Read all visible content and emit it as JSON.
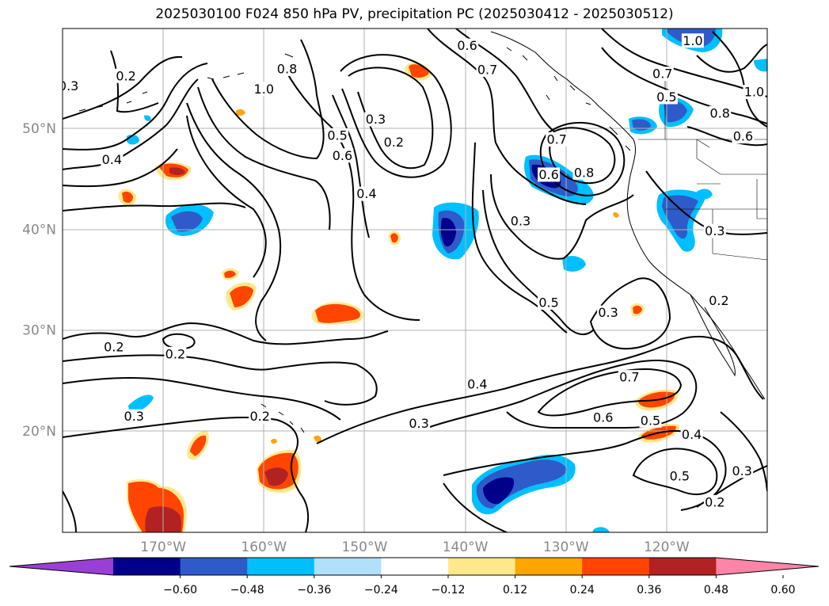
{
  "title": "2025030100 F024 850 hPa PV, precipitation PC (2025030412 - 2025030512)",
  "map": {
    "lon_range": [
      -180,
      -110
    ],
    "lat_range": [
      10,
      60
    ],
    "lat_ticks": [
      {
        "value": 20,
        "label": "20°N"
      },
      {
        "value": 30,
        "label": "30°N"
      },
      {
        "value": 40,
        "label": "40°N"
      },
      {
        "value": 50,
        "label": "50°N"
      }
    ],
    "lon_ticks": [
      {
        "value": -170,
        "label": "170°W"
      },
      {
        "value": -160,
        "label": "160°W"
      },
      {
        "value": -150,
        "label": "150°W"
      },
      {
        "value": -140,
        "label": "140°W"
      },
      {
        "value": -130,
        "label": "130°W"
      },
      {
        "value": -120,
        "label": "120°W"
      }
    ],
    "gridlines": true,
    "contour_labels": [
      {
        "text": "0.3",
        "lon": -179.4,
        "lat": 54.3
      },
      {
        "text": "0.2",
        "lon": -173.7,
        "lat": 55.3
      },
      {
        "text": "0.4",
        "lon": -175.1,
        "lat": 47.0
      },
      {
        "text": "1.0",
        "lon": -160.0,
        "lat": 54.0
      },
      {
        "text": "0.8",
        "lon": -157.7,
        "lat": 56.0
      },
      {
        "text": "0.5",
        "lon": -152.7,
        "lat": 49.4
      },
      {
        "text": "0.6",
        "lon": -152.2,
        "lat": 47.4
      },
      {
        "text": "0.3",
        "lon": -148.9,
        "lat": 51.0
      },
      {
        "text": "0.2",
        "lon": -147.1,
        "lat": 48.7
      },
      {
        "text": "0.4",
        "lon": -149.8,
        "lat": 43.6
      },
      {
        "text": "0.6",
        "lon": -139.8,
        "lat": 58.3
      },
      {
        "text": "0.7",
        "lon": -137.8,
        "lat": 55.9
      },
      {
        "text": "0.7",
        "lon": -130.9,
        "lat": 49.0
      },
      {
        "text": "0.6",
        "lon": -131.7,
        "lat": 45.5
      },
      {
        "text": "0.8",
        "lon": -128.2,
        "lat": 45.7
      },
      {
        "text": "0.3",
        "lon": -134.5,
        "lat": 40.9
      },
      {
        "text": "0.5",
        "lon": -131.7,
        "lat": 32.8
      },
      {
        "text": "0.3",
        "lon": -125.8,
        "lat": 31.8
      },
      {
        "text": "0.7",
        "lon": -120.4,
        "lat": 55.5
      },
      {
        "text": "0.5",
        "lon": -120.0,
        "lat": 53.2
      },
      {
        "text": "1.0",
        "lon": -117.4,
        "lat": 58.8
      },
      {
        "text": "0.8",
        "lon": -114.7,
        "lat": 51.6
      },
      {
        "text": "0.6",
        "lon": -112.4,
        "lat": 49.3
      },
      {
        "text": "1.0",
        "lon": -111.3,
        "lat": 53.7
      },
      {
        "text": "0.3",
        "lon": -115.2,
        "lat": 39.9
      },
      {
        "text": "0.2",
        "lon": -114.8,
        "lat": 33.0
      },
      {
        "text": "0.2",
        "lon": -174.9,
        "lat": 28.4
      },
      {
        "text": "0.2",
        "lon": -168.8,
        "lat": 27.7
      },
      {
        "text": "0.3",
        "lon": -172.9,
        "lat": 21.5
      },
      {
        "text": "0.2",
        "lon": -160.4,
        "lat": 21.5
      },
      {
        "text": "0.3",
        "lon": -144.6,
        "lat": 20.8
      },
      {
        "text": "0.4",
        "lon": -138.8,
        "lat": 24.7
      },
      {
        "text": "0.7",
        "lon": -123.7,
        "lat": 25.4
      },
      {
        "text": "0.6",
        "lon": -126.3,
        "lat": 21.4
      },
      {
        "text": "0.5",
        "lon": -121.6,
        "lat": 21.1
      },
      {
        "text": "0.4",
        "lon": -117.5,
        "lat": 19.7
      },
      {
        "text": "0.5",
        "lon": -118.7,
        "lat": 15.6
      },
      {
        "text": "0.3",
        "lon": -112.5,
        "lat": 16.1
      },
      {
        "text": "0.2",
        "lon": -115.2,
        "lat": 13.0
      }
    ]
  },
  "colorbar": {
    "tick_labels": [
      "−0.60",
      "−0.48",
      "−0.36",
      "−0.24",
      "−0.12",
      "0.12",
      "0.24",
      "0.36",
      "0.48",
      "0.60"
    ],
    "colors": {
      "below": "#9a3fd6",
      "b1": "#00008b",
      "b2": "#2e5bc9",
      "b3": "#00bfff",
      "b4": "#b0e0fa",
      "b5": "#ffffff",
      "b6": "#ffe88c",
      "b7": "#ffa500",
      "b8": "#ff4500",
      "b9": "#b22222",
      "above": "#ff85a8"
    }
  }
}
